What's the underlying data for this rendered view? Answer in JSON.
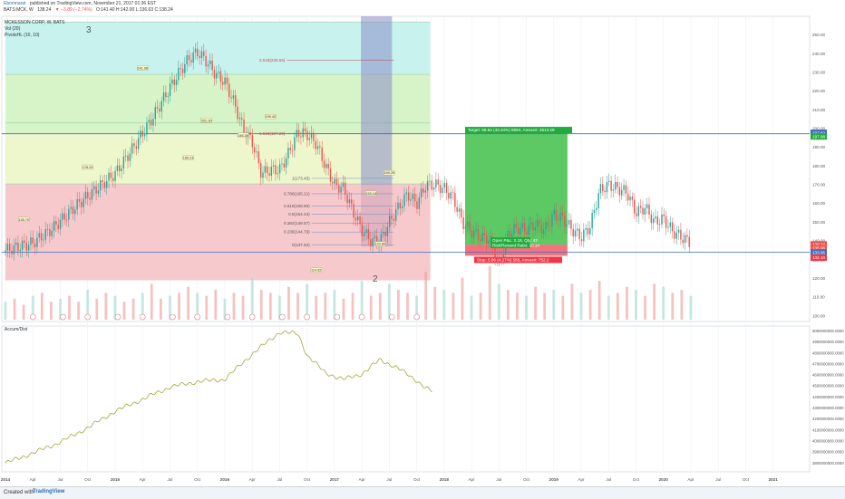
{
  "header": {
    "author": "Ebonmarat",
    "published": "published on TradingView.com, November 21, 2017 01:36 EST",
    "symbol": "BATS:MCK, W",
    "last": "138.24",
    "change": "▼ −3.89 (−2.74%)",
    "ohlc": "O:141.40 H:142.00 L:136.63 C:138.24",
    "legend_title": "MCKESSON CORP, W, BATS",
    "indicator1": "Vol (20)",
    "indicator2": "PivotsHL (10, 10)",
    "wave_3": "3",
    "wave_2": "2"
  },
  "lower_panel": {
    "title": "Accum/Dist"
  },
  "footer": {
    "created": "Created with",
    "brand": "TradingView"
  },
  "colors": {
    "up": "#26a69a",
    "down": "#ef5350",
    "ad_line": "#a3a63a",
    "blue_line": "#3f6fbf",
    "target_green": "#22ab3c",
    "stop_red": "#f23645",
    "zone_cyan": "#c7f2ee",
    "zone_green": "#d7f3c8",
    "zone_yellow": "#eef7cc",
    "zone_red": "#f6c9cd",
    "fib_column": "#8a8cc9"
  },
  "chart_data": {
    "type": "candlestick",
    "price_axis": {
      "range": [
        97,
        260
      ],
      "ticks": [
        "250.00",
        "240.00",
        "230.00",
        "220.00",
        "210.00",
        "200.00",
        "190.00",
        "180.00",
        "170.00",
        "160.00",
        "150.00",
        "140.00",
        "130.00",
        "120.00",
        "110.00",
        "100.00"
      ]
    },
    "ad_axis": {
      "range": [
        3720000000,
        5045000000
      ],
      "ticks": [
        "5000000000.0000",
        "4900000000.0000",
        "4800000000.0000",
        "4700000000.0000",
        "4600000000.0000",
        "4500000000.0000",
        "4400000000.0000",
        "4300000000.0000",
        "4200000000.0000",
        "4100000000.0000",
        "4000000000.0000",
        "3900000000.0000",
        "3800000000.0000"
      ]
    },
    "time_axis": {
      "start": "2014-01",
      "end": "2021-04",
      "labels": [
        {
          "t": "2014",
          "m": 0
        },
        {
          "t": "Apr",
          "m": 3
        },
        {
          "t": "Jul",
          "m": 6
        },
        {
          "t": "Oct",
          "m": 9
        },
        {
          "t": "2015",
          "m": 12
        },
        {
          "t": "Apr",
          "m": 15
        },
        {
          "t": "Jul",
          "m": 18
        },
        {
          "t": "Oct",
          "m": 21
        },
        {
          "t": "2016",
          "m": 24
        },
        {
          "t": "Apr",
          "m": 27
        },
        {
          "t": "Jul",
          "m": 30
        },
        {
          "t": "Oct",
          "m": 33
        },
        {
          "t": "2017",
          "m": 36
        },
        {
          "t": "Apr",
          "m": 39
        },
        {
          "t": "Jul",
          "m": 42
        },
        {
          "t": "Oct",
          "m": 45
        },
        {
          "t": "2018",
          "m": 48
        },
        {
          "t": "Apr",
          "m": 51
        },
        {
          "t": "Jul",
          "m": 54
        },
        {
          "t": "Oct",
          "m": 57
        },
        {
          "t": "2019",
          "m": 60
        },
        {
          "t": "Apr",
          "m": 63
        },
        {
          "t": "Jul",
          "m": 66
        },
        {
          "t": "Oct",
          "m": 69
        },
        {
          "t": "2020",
          "m": 72
        },
        {
          "t": "Apr",
          "m": 75
        },
        {
          "t": "Jul",
          "m": 78
        },
        {
          "t": "Oct",
          "m": 81
        },
        {
          "t": "2021",
          "m": 84
        }
      ]
    },
    "price_anchors": [
      [
        0,
        135
      ],
      [
        3,
        139
      ],
      [
        5,
        146
      ],
      [
        8,
        160
      ],
      [
        10,
        168
      ],
      [
        12,
        176
      ],
      [
        14,
        190
      ],
      [
        16,
        205
      ],
      [
        18,
        222
      ],
      [
        19,
        230
      ],
      [
        20,
        237
      ],
      [
        21,
        241
      ],
      [
        22,
        236
      ],
      [
        23,
        229
      ],
      [
        24,
        225
      ],
      [
        25,
        214
      ],
      [
        26,
        200
      ],
      [
        27,
        193
      ],
      [
        28,
        176
      ],
      [
        29,
        178
      ],
      [
        30,
        178
      ],
      [
        31,
        187
      ],
      [
        32,
        198
      ],
      [
        33,
        197
      ],
      [
        34,
        192
      ],
      [
        35,
        180
      ],
      [
        36,
        170
      ],
      [
        37,
        168
      ],
      [
        38,
        156
      ],
      [
        39,
        146
      ],
      [
        40,
        140
      ],
      [
        41,
        140
      ],
      [
        42,
        150
      ],
      [
        43,
        158
      ],
      [
        44,
        165
      ],
      [
        45,
        160
      ],
      [
        46,
        170
      ],
      [
        47,
        170
      ],
      [
        48,
        168
      ],
      [
        49,
        163
      ],
      [
        50,
        150
      ],
      [
        51,
        145
      ],
      [
        52,
        142
      ],
      [
        53,
        141
      ],
      [
        54,
        127
      ],
      [
        55,
        144
      ],
      [
        56,
        147
      ],
      [
        57,
        146
      ],
      [
        58,
        149
      ],
      [
        59,
        146
      ],
      [
        60,
        154
      ],
      [
        61,
        152
      ],
      [
        62,
        146
      ],
      [
        63,
        142
      ],
      [
        64,
        148
      ],
      [
        65,
        167
      ],
      [
        66,
        170
      ],
      [
        67,
        168
      ],
      [
        68,
        166
      ],
      [
        69,
        155
      ],
      [
        70,
        158
      ],
      [
        71,
        150
      ],
      [
        72,
        152
      ],
      [
        73,
        145
      ],
      [
        74,
        142
      ],
      [
        75,
        139
      ]
    ],
    "volume": [
      6,
      7,
      5,
      8,
      9,
      6,
      7,
      8,
      6,
      10,
      7,
      9,
      8,
      6,
      7,
      9,
      12,
      7,
      8,
      9,
      11,
      9,
      8,
      10,
      7,
      9,
      8,
      14,
      10,
      9,
      8,
      11,
      9,
      12,
      8,
      9,
      10,
      7,
      9,
      13,
      8,
      9,
      12,
      10,
      9,
      8,
      16,
      11,
      10,
      9,
      14,
      8,
      9,
      18,
      12,
      10,
      9,
      8,
      11,
      9,
      10,
      8,
      12,
      9,
      10,
      13,
      8,
      9,
      11,
      10,
      8,
      12,
      11,
      9,
      10,
      8
    ],
    "accum_dist_anchors": [
      [
        "2014-01",
        3800000000
      ],
      [
        "2014-04",
        3890000000
      ],
      [
        "2014-07",
        3990000000
      ],
      [
        "2014-10",
        4120000000
      ],
      [
        "2015-01",
        4270000000
      ],
      [
        "2015-04",
        4380000000
      ],
      [
        "2015-07",
        4490000000
      ],
      [
        "2015-10",
        4540000000
      ],
      [
        "2016-01",
        4560000000
      ],
      [
        "2016-04",
        4790000000
      ],
      [
        "2016-07",
        4990000000
      ],
      [
        "2016-09",
        4975000000
      ],
      [
        "2016-10",
        4780000000
      ],
      [
        "2016-12",
        4620000000
      ],
      [
        "2017-02",
        4560000000
      ],
      [
        "2017-04",
        4610000000
      ],
      [
        "2017-06",
        4740000000
      ],
      [
        "2017-08",
        4660000000
      ],
      [
        "2017-10",
        4550000000
      ],
      [
        "2017-11",
        4480000000
      ],
      [
        "2017-11-21",
        4450000000
      ]
    ],
    "fib_levels": [
      {
        "label": "2.618(236.55)",
        "value": 236.55
      },
      {
        "label": "1.618(197.28)",
        "value": 197.28
      },
      {
        "label": "1(173.45)",
        "value": 173.45
      },
      {
        "label": "0.786(165.21)",
        "value": 165.21
      },
      {
        "label": "0.618(158.60)",
        "value": 158.6
      },
      {
        "label": "0.5(154.43)",
        "value": 154.43
      },
      {
        "label": "0.382(149.57)",
        "value": 149.57
      },
      {
        "label": "0.236(144.79)",
        "value": 144.79
      },
      {
        "label": "0(137.92)",
        "value": 137.92
      }
    ],
    "pivot_labels": [
      {
        "t": "2014-03",
        "v": 151,
        "label": "135.70"
      },
      {
        "t": "2014-10",
        "v": 179,
        "label": "176.20"
      },
      {
        "t": "2015-04",
        "v": 232,
        "label": "241.98"
      },
      {
        "t": "2015-09",
        "v": 184,
        "label": "160.23"
      },
      {
        "t": "2015-11",
        "v": 204,
        "label": "202.30"
      },
      {
        "t": "2016-03",
        "v": 196,
        "label": "146.38"
      },
      {
        "t": "2016-06",
        "v": 206,
        "label": "199.40"
      },
      {
        "t": "2016-11",
        "v": 124,
        "label": "114.52"
      },
      {
        "t": "2017-05",
        "v": 165,
        "label": "155.18"
      },
      {
        "t": "2017-07",
        "v": 176,
        "label": "169.29"
      },
      {
        "t": "2017-06",
        "v": 138,
        "label": "133.80"
      }
    ],
    "position": {
      "target": "Target: 59.84 (43.34%) 5984, Amount: 3513.28",
      "open": "Open P&L: 0.18, Qty: 42",
      "rr": "Risk/Reward Ratio: 10.14",
      "stop": "Stop: 5.86 (4.27%) 586, Amount: 752.2",
      "target_price": 197.82,
      "entry_price": 138.07,
      "stop_price": 132.1
    },
    "price_badges": [
      {
        "label": "197.82",
        "value": 197.82,
        "color": "#3f6fbf"
      },
      {
        "label": "197.98",
        "value": 195.8,
        "color": "#22ab3c"
      },
      {
        "label": "138.24",
        "value": 138.24,
        "color": "#ef5350"
      },
      {
        "label": "135.96",
        "value": 136.2,
        "color": "#ef5350"
      },
      {
        "label": "133.95",
        "value": 133.95,
        "color": "#3f6fbf"
      },
      {
        "label": "132.10",
        "value": 131.1,
        "color": "#f23645"
      }
    ],
    "horizontal_lines": [
      197.28,
      133.95
    ]
  }
}
